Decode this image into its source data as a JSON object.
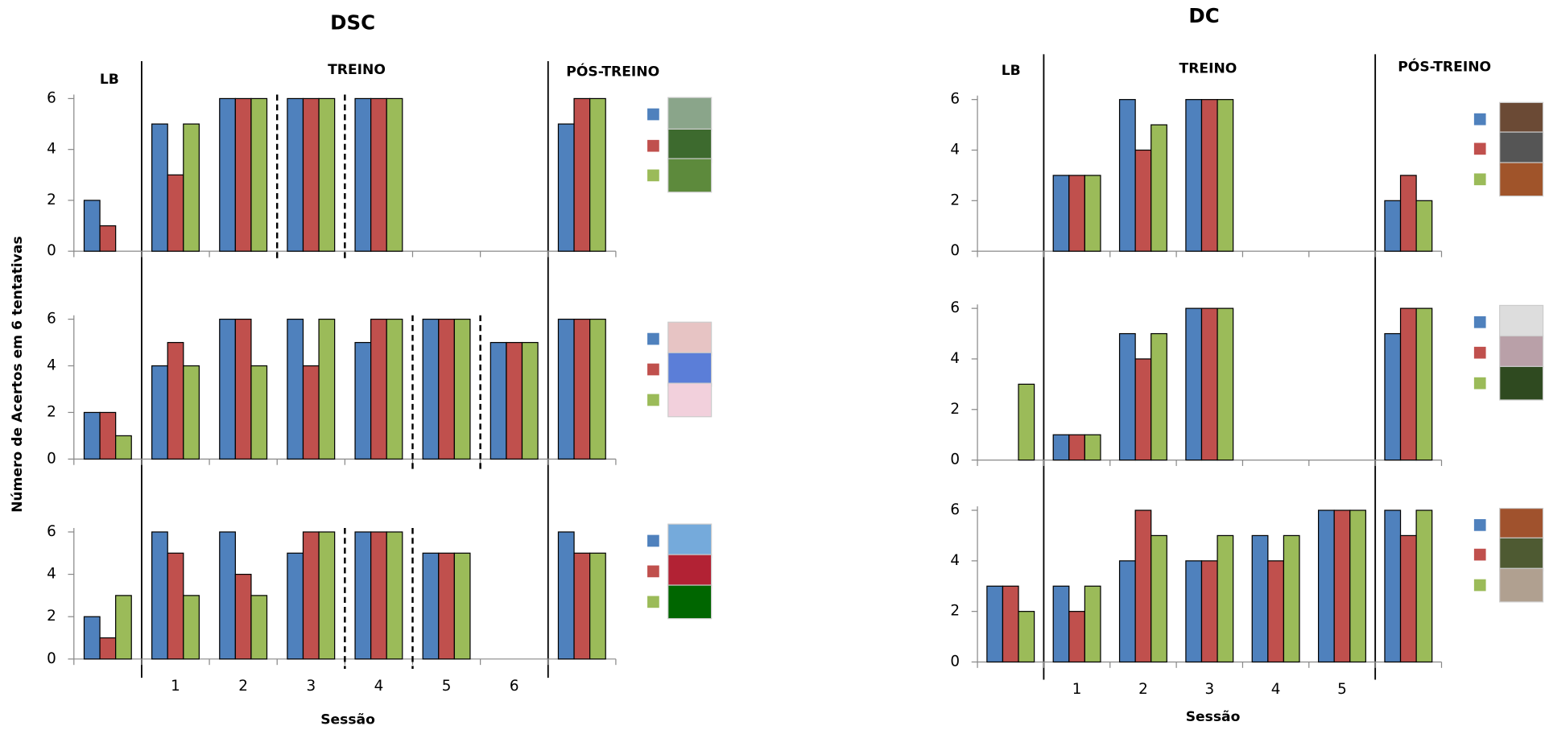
{
  "chart_data": [
    {
      "type": "bar",
      "title": "DSC",
      "section_labels": [
        "LB",
        "TREINO",
        "PÓS-TREINO"
      ],
      "x_label": "Sessão",
      "y_label": "Número de Acertos em 6 tentativas",
      "categories": [
        null,
        "1",
        "2",
        "3",
        "4",
        "5",
        "6",
        null
      ],
      "ylim": [
        0,
        6
      ],
      "yticks": [
        0,
        2,
        4,
        6
      ],
      "rows": [
        {
          "series": [
            {
              "color": "#4f81bd",
              "values": [
                2,
                5,
                6,
                6,
                6,
                null,
                null,
                5
              ]
            },
            {
              "color": "#c0504d",
              "values": [
                1,
                3,
                6,
                6,
                6,
                null,
                null,
                6
              ]
            },
            {
              "color": "#9bbb59",
              "values": [
                0,
                5,
                6,
                6,
                6,
                null,
                null,
                6
              ]
            }
          ]
        },
        {
          "series": [
            {
              "color": "#4f81bd",
              "values": [
                2,
                4,
                6,
                6,
                5,
                6,
                5,
                6
              ]
            },
            {
              "color": "#c0504d",
              "values": [
                2,
                5,
                6,
                4,
                6,
                6,
                5,
                6
              ]
            },
            {
              "color": "#9bbb59",
              "values": [
                1,
                4,
                4,
                6,
                6,
                6,
                5,
                6
              ]
            }
          ]
        },
        {
          "series": [
            {
              "color": "#4f81bd",
              "values": [
                2,
                6,
                6,
                5,
                6,
                5,
                null,
                6
              ]
            },
            {
              "color": "#c0504d",
              "values": [
                1,
                5,
                4,
                6,
                6,
                5,
                null,
                5
              ]
            },
            {
              "color": "#9bbb59",
              "values": [
                3,
                3,
                3,
                6,
                6,
                5,
                null,
                5
              ]
            }
          ]
        }
      ]
    },
    {
      "type": "bar",
      "title": "DC",
      "section_labels": [
        "LB",
        "TREINO",
        "PÓS-TREINO"
      ],
      "x_label": "Sessão",
      "categories": [
        null,
        "1",
        "2",
        "3",
        "4",
        "5",
        null
      ],
      "ylim": [
        0,
        6
      ],
      "yticks": [
        0,
        2,
        4,
        6
      ],
      "rows": [
        {
          "series": [
            {
              "color": "#4f81bd",
              "values": [
                null,
                3,
                6,
                6,
                null,
                null,
                2
              ]
            },
            {
              "color": "#c0504d",
              "values": [
                null,
                3,
                4,
                6,
                null,
                null,
                3
              ]
            },
            {
              "color": "#9bbb59",
              "values": [
                null,
                3,
                5,
                6,
                null,
                null,
                2
              ]
            }
          ]
        },
        {
          "series": [
            {
              "color": "#4f81bd",
              "values": [
                0,
                1,
                5,
                6,
                null,
                null,
                5
              ]
            },
            {
              "color": "#c0504d",
              "values": [
                0,
                1,
                4,
                6,
                null,
                null,
                6
              ]
            },
            {
              "color": "#9bbb59",
              "values": [
                3,
                1,
                5,
                6,
                null,
                null,
                6
              ]
            }
          ]
        },
        {
          "series": [
            {
              "color": "#4f81bd",
              "values": [
                3,
                3,
                4,
                4,
                5,
                6,
                6
              ]
            },
            {
              "color": "#c0504d",
              "values": [
                3,
                2,
                6,
                4,
                4,
                6,
                5
              ]
            },
            {
              "color": "#9bbb59",
              "values": [
                2,
                3,
                5,
                5,
                5,
                6,
                6
              ]
            }
          ]
        }
      ]
    }
  ]
}
